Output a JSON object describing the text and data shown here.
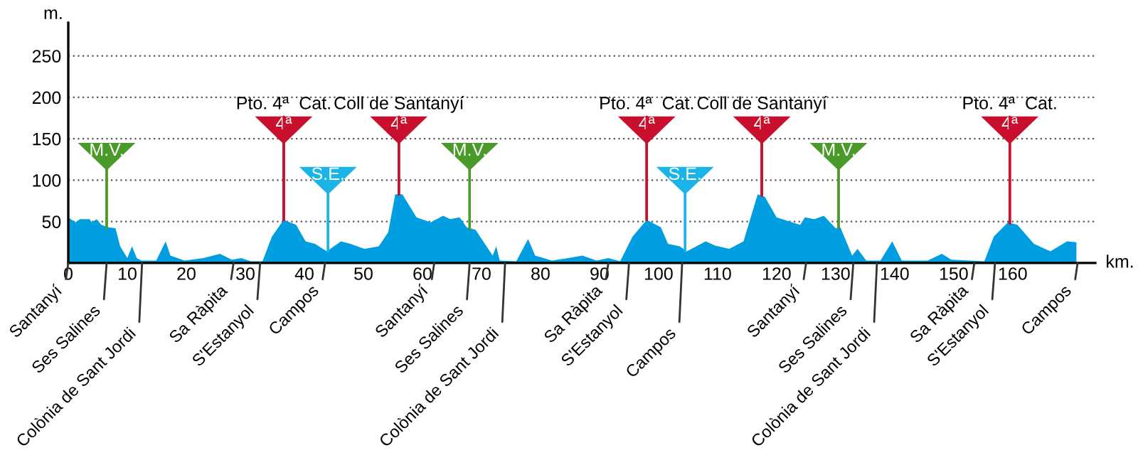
{
  "chart_data": {
    "type": "area",
    "xlabel": "km.",
    "ylabel": "m.",
    "x": [
      0,
      1.2,
      2,
      3.6,
      4,
      4.8,
      5.6,
      6.8,
      8,
      8.8,
      10,
      10.8,
      11.6,
      12.4,
      14.9,
      16.5,
      17.3,
      19.7,
      22.9,
      25.7,
      27.7,
      29.3,
      30.9,
      32.9,
      34.5,
      36.5,
      38.6,
      40.2,
      41.8,
      43.8,
      45,
      46.2,
      47.8,
      50.2,
      52.6,
      54.2,
      55.4,
      56.6,
      59,
      61.4,
      63.5,
      64.7,
      66.3,
      67.5,
      69,
      70.3,
      71.9,
      72.5,
      73.1,
      75.9,
      77.9,
      79.1,
      81.9,
      84.7,
      87.1,
      89.5,
      91.5,
      93.5,
      95.6,
      98,
      100.4,
      101.6,
      103.6,
      104.8,
      108,
      109.6,
      112,
      114.4,
      116.8,
      118,
      120,
      124,
      124.8,
      126.4,
      128,
      130,
      130.8,
      132.8,
      133.7,
      135.2,
      137.6,
      139.6,
      141.2,
      145.6,
      148,
      149.6,
      155.2,
      156.8,
      159.2,
      160.8,
      163.6,
      166.4,
      169.2,
      170.8
    ],
    "series": [
      {
        "color": "#009ee0",
        "values": [
          55,
          49,
          53,
          53,
          49,
          53,
          46,
          43,
          42,
          20,
          6,
          20,
          6,
          3,
          3,
          26,
          9,
          3,
          6,
          11,
          4,
          6,
          2,
          2,
          32,
          52,
          46,
          26,
          23,
          14,
          20,
          26,
          23,
          17,
          20,
          37,
          83,
          83,
          55,
          49,
          57,
          53,
          55,
          43,
          40,
          26,
          9,
          20,
          3,
          2,
          29,
          9,
          3,
          6,
          9,
          3,
          6,
          2,
          32,
          52,
          43,
          23,
          20,
          14,
          26,
          21,
          17,
          26,
          83,
          80,
          55,
          46,
          55,
          53,
          57,
          42,
          43,
          9,
          17,
          3,
          3,
          26,
          3,
          3,
          11,
          4,
          2,
          32,
          49,
          46,
          23,
          14,
          26,
          25
        ]
      }
    ],
    "xlim": [
      0,
      174
    ],
    "ylim": [
      0,
      290
    ],
    "xticks": [
      0,
      10,
      20,
      30,
      40,
      50,
      60,
      70,
      80,
      90,
      100,
      110,
      120,
      130,
      140,
      150,
      160
    ],
    "yticks": [
      50,
      100,
      150,
      200,
      250
    ],
    "grid": "y",
    "legend": false,
    "ref_lines": [
      {
        "axis": "x",
        "value": 6.5,
        "color": "#4a9a2a"
      },
      {
        "axis": "x",
        "value": 36.5,
        "color": "#c8102e"
      },
      {
        "axis": "x",
        "value": 44,
        "color": "#1ab4e8"
      },
      {
        "axis": "x",
        "value": 56,
        "color": "#c8102e"
      },
      {
        "axis": "x",
        "value": 68,
        "color": "#4a9a2a"
      },
      {
        "axis": "x",
        "value": 98,
        "color": "#c8102e"
      },
      {
        "axis": "x",
        "value": 104.5,
        "color": "#1ab4e8"
      },
      {
        "axis": "x",
        "value": 117.5,
        "color": "#c8102e"
      },
      {
        "axis": "x",
        "value": 130.5,
        "color": "#4a9a2a"
      },
      {
        "axis": "x",
        "value": 159.5,
        "color": "#c8102e"
      }
    ],
    "annotations": [
      {
        "text": "M.V.",
        "x": 6.5,
        "y": 42
      },
      {
        "text": "4ª",
        "x": 36.5,
        "y": 52
      },
      {
        "text": "S.E.",
        "x": 44,
        "y": 14
      },
      {
        "text": "4ª",
        "x": 56,
        "y": 83
      },
      {
        "text": "M.V.",
        "x": 68,
        "y": 41
      },
      {
        "text": "4ª",
        "x": 98,
        "y": 52
      },
      {
        "text": "S.E.",
        "x": 104.5,
        "y": 14
      },
      {
        "text": "4ª",
        "x": 117.5,
        "y": 82
      },
      {
        "text": "M.V.",
        "x": 130.5,
        "y": 43
      },
      {
        "text": "4ª",
        "x": 159.5,
        "y": 48
      },
      {
        "text": "Pto. 4ª  Cat.",
        "x": 36.5,
        "y": 52
      },
      {
        "text": "Coll de Santanyí",
        "x": 56,
        "y": 83
      },
      {
        "text": "Pto. 4ª  Cat.",
        "x": 98,
        "y": 52
      },
      {
        "text": "Coll de Santanyí",
        "x": 117.5,
        "y": 82
      },
      {
        "text": "Pto. 4ª  Cat.",
        "x": 159.5,
        "y": 48
      },
      {
        "text": "Santanyí",
        "x": 0,
        "y": 0
      },
      {
        "text": "Ses Salines",
        "x": 6.5,
        "y": 0
      },
      {
        "text": "Colònia de Sant Jordi",
        "x": 12.5,
        "y": 0
      },
      {
        "text": "Sa Ràpita",
        "x": 28,
        "y": 0
      },
      {
        "text": "S'Estanyol",
        "x": 32.5,
        "y": 0
      },
      {
        "text": "Campos",
        "x": 43.5,
        "y": 0
      },
      {
        "text": "Santanyí",
        "x": 62,
        "y": 0
      },
      {
        "text": "Ses Salines",
        "x": 68,
        "y": 0
      },
      {
        "text": "Colònia de Sant Jordi",
        "x": 74,
        "y": 0
      },
      {
        "text": "Sa Ràpita",
        "x": 91.5,
        "y": 0
      },
      {
        "text": "S'Estanyol",
        "x": 95,
        "y": 0
      },
      {
        "text": "Campos",
        "x": 104,
        "y": 0
      },
      {
        "text": "Santanyí",
        "x": 125,
        "y": 0
      },
      {
        "text": "Ses Salines",
        "x": 133,
        "y": 0
      },
      {
        "text": "Colònia de Sant Jordi",
        "x": 137,
        "y": 0
      },
      {
        "text": "Sa Ràpita",
        "x": 153.5,
        "y": 0
      },
      {
        "text": "S'Estanyol",
        "x": 157,
        "y": 0
      },
      {
        "text": "Campos",
        "x": 171,
        "y": 0
      }
    ]
  }
}
